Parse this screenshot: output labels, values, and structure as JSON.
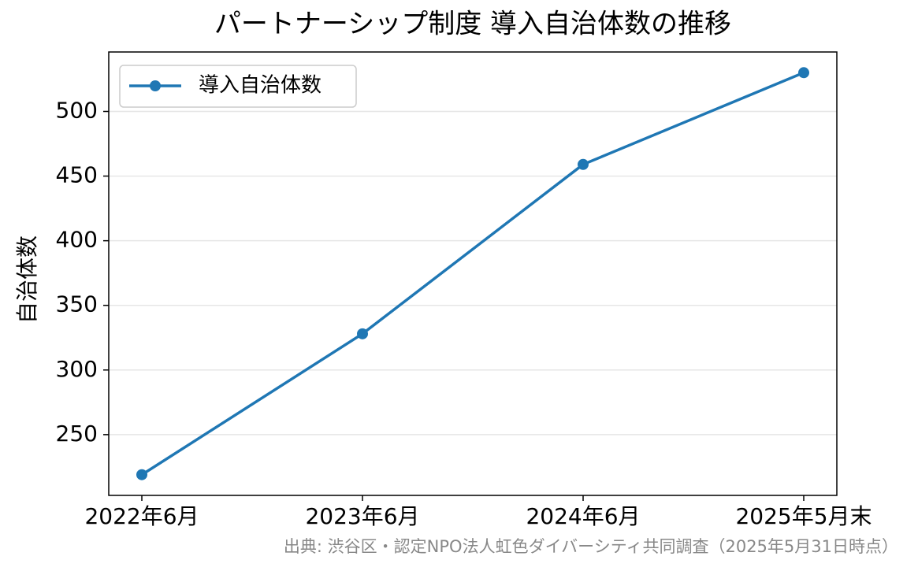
{
  "chart_data": {
    "type": "line",
    "title": "パートナーシップ制度 導入自治体数の推移",
    "ylabel": "自治体数",
    "source": "出典: 渋谷区・認定NPO法人虹色ダイバーシティ共同調査（2025年5月31日時点）",
    "categories": [
      "2022年6月",
      "2023年6月",
      "2024年6月",
      "2025年5月末"
    ],
    "series": [
      {
        "name": "導入自治体数",
        "color": "#1f77b4",
        "values": [
          219,
          328,
          459,
          530
        ]
      }
    ],
    "ylim": [
      203,
      546
    ],
    "yticks": [
      250,
      300,
      350,
      400,
      450,
      500
    ],
    "grid": true,
    "legend": "upper left"
  }
}
